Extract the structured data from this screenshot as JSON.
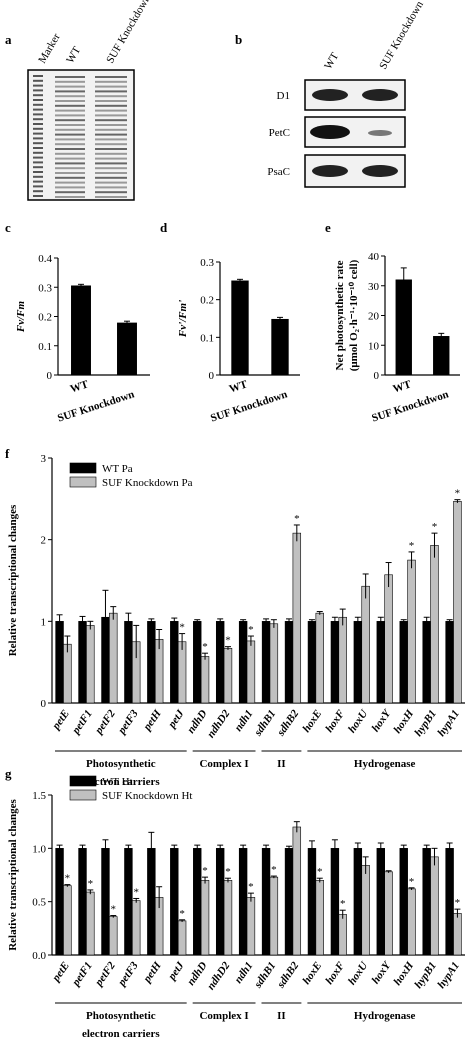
{
  "gels": [
    {
      "panel": "a",
      "lanes": [
        "Marker",
        "WT",
        "SUF Knockdown"
      ]
    },
    {
      "panel": "b",
      "lanes": [
        "WT",
        "SUF Knockdown"
      ],
      "rows": [
        "D1",
        "PetC",
        "PsaC"
      ]
    }
  ],
  "chart_data": [
    {
      "type": "bar",
      "panel": "c",
      "ylabel": "Fv/Fm",
      "categories": [
        "WT",
        "SUF Knockdown"
      ],
      "values": [
        0.305,
        0.178
      ],
      "errors": [
        0.005,
        0.006
      ],
      "color": "#000000",
      "ylim": [
        0,
        0.4
      ],
      "yticks": [
        0,
        0.1,
        0.2,
        0.3,
        0.4
      ]
    },
    {
      "type": "bar",
      "panel": "d",
      "ylabel": "Fv'/Fm'",
      "categories": [
        "WT",
        "SUF Knockdown"
      ],
      "values": [
        0.25,
        0.148
      ],
      "errors": [
        0.004,
        0.005
      ],
      "color": "#000000",
      "ylim": [
        0,
        0.3
      ],
      "yticks": [
        0,
        0.1,
        0.2,
        0.3
      ]
    },
    {
      "type": "bar",
      "panel": "e",
      "ylabel": [
        "Net photosynthetic rate",
        "(μmol O₂·h⁻¹·10⁻¹⁰ cell)"
      ],
      "categories": [
        "WT",
        "SUF Knockdwon"
      ],
      "values": [
        32,
        13
      ],
      "errors": [
        4,
        1
      ],
      "color": "#000000",
      "ylim": [
        0,
        40
      ],
      "yticks": [
        0,
        10,
        20,
        30,
        40
      ]
    },
    {
      "type": "bar",
      "panel": "f",
      "ylabel": "Relative transcriptional changes",
      "categories": [
        "petE",
        "petF1",
        "petF2",
        "petF3",
        "petH",
        "petJ",
        "ndhD",
        "ndhD2",
        "ndh1",
        "sdhB1",
        "sdhB2",
        "hoxE",
        "hoxF",
        "hoxU",
        "hoxY",
        "hoxH",
        "hypB1",
        "hypA1"
      ],
      "series": [
        {
          "name": "WT  Pa",
          "color": "#000000",
          "values": [
            1,
            1,
            1.05,
            1,
            1,
            1,
            1,
            1,
            1,
            1,
            1,
            1,
            1,
            1,
            1,
            1,
            1,
            1
          ],
          "errors": [
            0.08,
            0.06,
            0.33,
            0.1,
            0.03,
            0.04,
            0.02,
            0.03,
            0.02,
            0.03,
            0.03,
            0.02,
            0.05,
            0.05,
            0.05,
            0.02,
            0.05,
            0.02
          ]
        },
        {
          "name": "SUF Knockdown Pa",
          "color": "#c0c0c0",
          "values": [
            0.72,
            0.95,
            1.1,
            0.75,
            0.78,
            0.75,
            0.57,
            0.67,
            0.76,
            0.97,
            2.08,
            1.1,
            1.05,
            1.43,
            1.57,
            1.75,
            1.93,
            2.47
          ],
          "errors": [
            0.1,
            0.05,
            0.08,
            0.2,
            0.12,
            0.1,
            0.04,
            0.02,
            0.06,
            0.05,
            0.1,
            0.02,
            0.1,
            0.15,
            0.15,
            0.1,
            0.15,
            0.02
          ],
          "annotations": [
            null,
            null,
            null,
            null,
            null,
            "*",
            "*",
            "*",
            "*",
            null,
            "*",
            null,
            null,
            null,
            null,
            "*",
            "*",
            "*"
          ]
        }
      ],
      "groups": [
        [
          "Photosynthetic",
          "electron carriers"
        ],
        [
          "Complex I"
        ],
        [
          "II"
        ],
        [
          "Hydrogenase"
        ]
      ],
      "ylim": [
        0,
        3
      ],
      "yticks": [
        0,
        1,
        2,
        3
      ]
    },
    {
      "type": "bar",
      "panel": "g",
      "ylabel": "Relative transcriptional changes",
      "categories": [
        "petE",
        "petF1",
        "petF2",
        "petF3",
        "petH",
        "petJ",
        "ndhD",
        "ndhD2",
        "ndh1",
        "sdhB1",
        "sdhB2",
        "hoxE",
        "hoxF",
        "hoxU",
        "hoxY",
        "hoxH",
        "hypB1",
        "hypA1"
      ],
      "series": [
        {
          "name": "WT Ht",
          "color": "#000000",
          "values": [
            1,
            1,
            1,
            1,
            1,
            1,
            1,
            1,
            1,
            1,
            1,
            1,
            1,
            1,
            1,
            1,
            1,
            1
          ],
          "errors": [
            0.03,
            0.03,
            0.08,
            0.03,
            0.15,
            0.03,
            0.03,
            0.03,
            0.03,
            0.03,
            0.02,
            0.07,
            0.08,
            0.05,
            0.05,
            0.03,
            0.03,
            0.05
          ]
        },
        {
          "name": "SUF Knockdown Ht",
          "color": "#c0c0c0",
          "values": [
            0.65,
            0.59,
            0.36,
            0.51,
            0.54,
            0.32,
            0.7,
            0.7,
            0.54,
            0.73,
            1.2,
            0.7,
            0.38,
            0.84,
            0.78,
            0.62,
            0.92,
            0.39
          ],
          "errors": [
            0.01,
            0.02,
            0.01,
            0.02,
            0.1,
            0.01,
            0.03,
            0.02,
            0.04,
            0.01,
            0.05,
            0.02,
            0.04,
            0.08,
            0.01,
            0.01,
            0.08,
            0.04
          ],
          "annotations": [
            "*",
            "*",
            "*",
            "*",
            null,
            "*",
            "*",
            "*",
            "*",
            "*",
            null,
            "*",
            "*",
            null,
            null,
            "*",
            null,
            "*"
          ]
        }
      ],
      "groups": [
        [
          "Photosynthetic",
          "electron carriers"
        ],
        [
          "Complex I"
        ],
        [
          "II"
        ],
        [
          "Hydrogenase"
        ]
      ],
      "ylim": [
        0,
        1.5
      ],
      "yticks": [
        {
          "value": 0,
          "label": "0.0"
        },
        0.5,
        {
          "value": 1,
          "label": "1.0"
        },
        1.5
      ]
    }
  ]
}
